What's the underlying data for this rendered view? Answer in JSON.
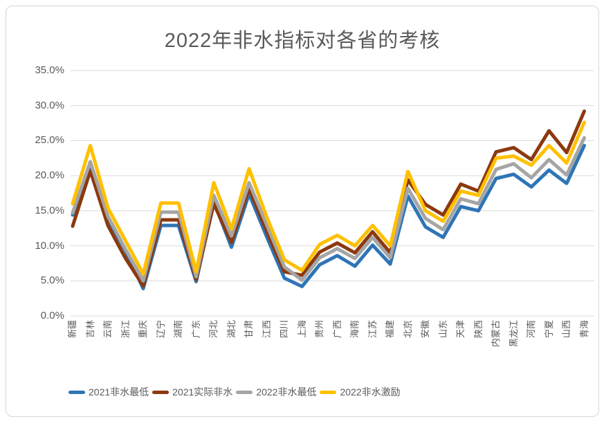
{
  "title": "2022年非水指标对各省的考核",
  "y_axis": {
    "tick_labels": [
      "0.0%",
      "5.0%",
      "10.0%",
      "15.0%",
      "20.0%",
      "25.0%",
      "30.0%",
      "35.0%"
    ]
  },
  "colors": {
    "grid": "#d9d9d9",
    "text": "#595959",
    "series_blue": "#2E75B6",
    "series_red": "#8C390E",
    "series_gray": "#A5A5A5",
    "series_gold": "#FFC000"
  },
  "chart_data": {
    "type": "line",
    "title": "2022年非水指标对各省的考核",
    "xlabel": "",
    "ylabel": "",
    "ylim": [
      0,
      35
    ],
    "grid": true,
    "legend_position": "bottom",
    "categories": [
      "新疆",
      "吉林",
      "云南",
      "浙江",
      "重庆",
      "辽宁",
      "湖南",
      "广东",
      "河北",
      "湖北",
      "甘肃",
      "江西",
      "四川",
      "上海",
      "贵州",
      "广西",
      "海南",
      "江苏",
      "福建",
      "北京",
      "安徽",
      "山东",
      "天津",
      "陕西",
      "内蒙古",
      "黑龙江",
      "河南",
      "宁夏",
      "山西",
      "青海"
    ],
    "series": [
      {
        "name": "2021非水最低",
        "color": "#2E75B6",
        "values": [
          14.4,
          21.7,
          13.9,
          9.3,
          3.9,
          12.9,
          12.9,
          4.9,
          16.3,
          9.8,
          17.4,
          11.3,
          5.4,
          4.2,
          7.3,
          8.6,
          7.1,
          10.1,
          7.4,
          17.1,
          12.7,
          11.2,
          15.6,
          15.0,
          19.6,
          20.2,
          18.4,
          20.8,
          18.9,
          24.3
        ]
      },
      {
        "name": "2021实际非水",
        "color": "#8C390E",
        "values": [
          12.8,
          20.7,
          12.9,
          8.2,
          4.3,
          13.7,
          13.7,
          5.2,
          16.0,
          10.5,
          18.2,
          12.1,
          6.3,
          5.8,
          9.1,
          10.4,
          9.0,
          12.0,
          9.0,
          19.4,
          15.9,
          14.4,
          18.8,
          17.8,
          23.4,
          24.0,
          22.3,
          26.4,
          23.3,
          29.2
        ]
      },
      {
        "name": "2022非水最低",
        "color": "#A5A5A5",
        "values": [
          14.7,
          22.0,
          14.2,
          9.5,
          5.0,
          14.8,
          14.8,
          5.6,
          17.2,
          11.4,
          19.0,
          13.0,
          7.0,
          5.1,
          8.3,
          9.6,
          8.2,
          11.2,
          8.3,
          18.2,
          13.9,
          12.3,
          16.7,
          16.0,
          20.9,
          21.7,
          19.7,
          22.3,
          20.1,
          25.4
        ]
      },
      {
        "name": "2022非水激励",
        "color": "#FFC000",
        "values": [
          16.0,
          24.3,
          15.4,
          10.7,
          6.0,
          16.1,
          16.1,
          6.3,
          19.0,
          12.4,
          21.0,
          14.1,
          8.0,
          6.5,
          10.2,
          11.5,
          10.0,
          12.9,
          10.0,
          20.6,
          15.0,
          13.5,
          17.8,
          17.2,
          22.5,
          22.8,
          21.5,
          24.3,
          21.8,
          27.6
        ]
      }
    ]
  }
}
